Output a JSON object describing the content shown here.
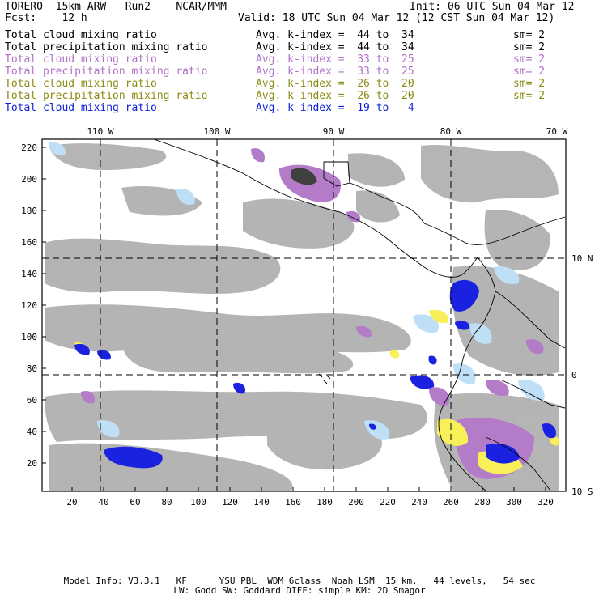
{
  "header": {
    "left1": "TORERO  15km ARW   Run2    NCAR/MMM",
    "right1": "Init: 06 UTC Sun 04 Mar 12",
    "left2": "Fcst:    12 h",
    "right2": "Valid: 18 UTC Sun 04 Mar 12 (12 CST Sun 04 Mar 12)"
  },
  "fields": [
    {
      "name": "Total cloud mixing ratio",
      "avg": "Avg. k-index =  44 to  34",
      "sm": "sm= 2",
      "color": "#000000"
    },
    {
      "name": "Total precipitation mixing ratio",
      "avg": "Avg. k-index =  44 to  34",
      "sm": "sm= 2",
      "color": "#000000"
    },
    {
      "name": "Total cloud mixing ratio",
      "avg": "Avg. k-index =  33 to  25",
      "sm": "sm= 2",
      "color": "#b070c8"
    },
    {
      "name": "Total precipitation mixing ratio",
      "avg": "Avg. k-index =  33 to  25",
      "sm": "sm= 2",
      "color": "#b070c8"
    },
    {
      "name": "Total cloud mixing ratio",
      "avg": "Avg. k-index =  26 to  20",
      "sm": "sm= 2",
      "color": "#8a8a10"
    },
    {
      "name": "Total precipitation mixing ratio",
      "avg": "Avg. k-index =  26 to  20",
      "sm": "sm= 2",
      "color": "#8a8a10"
    },
    {
      "name": "Total cloud mixing ratio",
      "avg": "Avg. k-index =  19 to   4",
      "sm": "",
      "color": "#0b1fd8"
    }
  ],
  "map": {
    "top_lon_labels": [
      "110 W",
      "100 W",
      "90 W",
      "80 W",
      "70 W"
    ],
    "right_lat_labels": [
      "10 N",
      "0",
      "10 S"
    ],
    "x_ticks": [
      "20",
      "40",
      "60",
      "80",
      "100",
      "120",
      "140",
      "160",
      "180",
      "200",
      "220",
      "240",
      "260",
      "280",
      "300",
      "320"
    ],
    "y_ticks": [
      "20",
      "40",
      "60",
      "80",
      "100",
      "120",
      "140",
      "160",
      "180",
      "200",
      "220"
    ]
  },
  "footer": {
    "line1": "Model Info: V3.3.1   KF      YSU PBL  WDM 6class  Noah LSM  15 km,   44 levels,   54 sec",
    "line2": "LW: Godd SW: Goddard DIFF: simple KM: 2D Smagor"
  }
}
